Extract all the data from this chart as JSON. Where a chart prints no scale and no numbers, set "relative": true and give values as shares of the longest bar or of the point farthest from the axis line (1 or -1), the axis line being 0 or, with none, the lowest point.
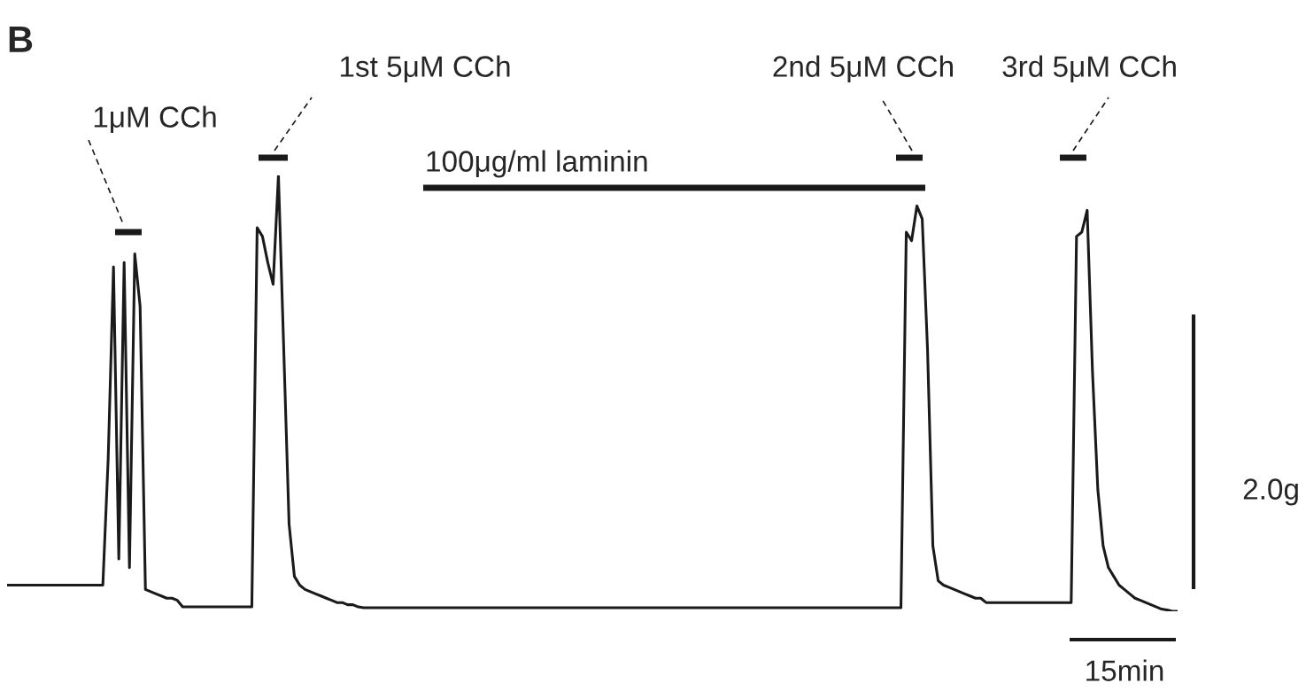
{
  "chart_data": {
    "type": "line",
    "title": "B",
    "relative": true,
    "color": "#1a1a1a",
    "annotations": [
      "1μM CCh",
      "1st 5μM CCh",
      "100μg/ml laminin",
      "2nd 5μM CCh",
      "3rd 5μM CCh",
      "2.0g",
      "15min"
    ],
    "categories": [
      null,
      null,
      null,
      null,
      null,
      null,
      null,
      null,
      null,
      null,
      null,
      null,
      null,
      null,
      null,
      null,
      null,
      null,
      null,
      null,
      null,
      null,
      null,
      null,
      null,
      null,
      null,
      null,
      null,
      null,
      null,
      null,
      null,
      null,
      null,
      null,
      null,
      null,
      null,
      null,
      null,
      null,
      null,
      null,
      null,
      null,
      null,
      null,
      null,
      null,
      null,
      null,
      null,
      null,
      null,
      null,
      null,
      null,
      null,
      null,
      null,
      null,
      null,
      null,
      null,
      null,
      null,
      null,
      null,
      null,
      null,
      null,
      null,
      null,
      null,
      null,
      null,
      null,
      null,
      null,
      null,
      null,
      null,
      null,
      null,
      null,
      null,
      null,
      null,
      null,
      null,
      null,
      null,
      null,
      null,
      null,
      null,
      null,
      null,
      null,
      null,
      null,
      null,
      null,
      null,
      null,
      null,
      null,
      null,
      null,
      null,
      null,
      null,
      null,
      null,
      null,
      null,
      null,
      null,
      null,
      null,
      null,
      null,
      null,
      null,
      null,
      null,
      null,
      null,
      null,
      null,
      null,
      null,
      null,
      null,
      null,
      null,
      null,
      null,
      null,
      null,
      null,
      null,
      null,
      null,
      null,
      null,
      null,
      null,
      null,
      null,
      null,
      null,
      null,
      null,
      null,
      null,
      null,
      null,
      null,
      null,
      null,
      null,
      null,
      null,
      null,
      null,
      null,
      null,
      null,
      null,
      null,
      null,
      null,
      null,
      null,
      null,
      null,
      null,
      null,
      null,
      null,
      null,
      null,
      null,
      null,
      null,
      null,
      null,
      null,
      null,
      null,
      null,
      null,
      null,
      null,
      null,
      null,
      null,
      null,
      null,
      null,
      null,
      null,
      null,
      null,
      null,
      null,
      null,
      null,
      null,
      null,
      null,
      null,
      null,
      null,
      null,
      null,
      null,
      null,
      null
    ],
    "values": [
      0.06,
      0.06,
      0.06,
      0.06,
      0.06,
      0.06,
      0.06,
      0.06,
      0.06,
      0.06,
      0.06,
      0.06,
      0.06,
      0.06,
      0.06,
      0.06,
      0.06,
      0.06,
      0.06,
      0.35,
      0.79,
      0.12,
      0.8,
      0.1,
      0.82,
      0.7,
      0.05,
      0.045,
      0.04,
      0.035,
      0.03,
      0.03,
      0.025,
      0.01,
      0.01,
      0.01,
      0.01,
      0.01,
      0.01,
      0.01,
      0.01,
      0.01,
      0.01,
      0.01,
      0.01,
      0.01,
      0.01,
      0.88,
      0.86,
      0.8,
      0.75,
      1,
      0.6,
      0.2,
      0.08,
      0.06,
      0.05,
      0.045,
      0.04,
      0.035,
      0.03,
      0.025,
      0.02,
      0.02,
      0.015,
      0.015,
      0.01,
      0.008,
      0.008,
      0.008,
      0.008,
      0.008,
      0.008,
      0.008,
      0.008,
      0.008,
      0.008,
      0.008,
      0.008,
      0.008,
      0.008,
      0.008,
      0.008,
      0.008,
      0.008,
      0.008,
      0.008,
      0.008,
      0.008,
      0.008,
      0.008,
      0.008,
      0.008,
      0.008,
      0.008,
      0.008,
      0.008,
      0.008,
      0.008,
      0.008,
      0.008,
      0.008,
      0.008,
      0.008,
      0.008,
      0.008,
      0.008,
      0.008,
      0.008,
      0.008,
      0.008,
      0.008,
      0.008,
      0.008,
      0.008,
      0.008,
      0.008,
      0.008,
      0.008,
      0.008,
      0.008,
      0.008,
      0.008,
      0.008,
      0.008,
      0.008,
      0.008,
      0.008,
      0.008,
      0.008,
      0.008,
      0.008,
      0.008,
      0.008,
      0.008,
      0.008,
      0.008,
      0.008,
      0.008,
      0.008,
      0.008,
      0.008,
      0.008,
      0.008,
      0.008,
      0.008,
      0.008,
      0.008,
      0.008,
      0.008,
      0.008,
      0.008,
      0.008,
      0.008,
      0.008,
      0.008,
      0.008,
      0.008,
      0.008,
      0.008,
      0.008,
      0.008,
      0.008,
      0.008,
      0.008,
      0.008,
      0.008,
      0.008,
      0.008,
      0.87,
      0.85,
      0.93,
      0.9,
      0.6,
      0.15,
      0.07,
      0.06,
      0.055,
      0.05,
      0.045,
      0.04,
      0.035,
      0.03,
      0.03,
      0.02,
      0.02,
      0.02,
      0.02,
      0.02,
      0.02,
      0.02,
      0.02,
      0.02,
      0.02,
      0.02,
      0.02,
      0.02,
      0.02,
      0.02,
      0.02,
      0.02,
      0.86,
      0.87,
      0.92,
      0.55,
      0.28,
      0.15,
      0.1,
      0.08,
      0.06,
      0.05,
      0.04,
      0.03,
      0.025,
      0.02,
      0.015,
      0.01,
      0.005,
      0.003,
      0,
      0
    ]
  }
}
